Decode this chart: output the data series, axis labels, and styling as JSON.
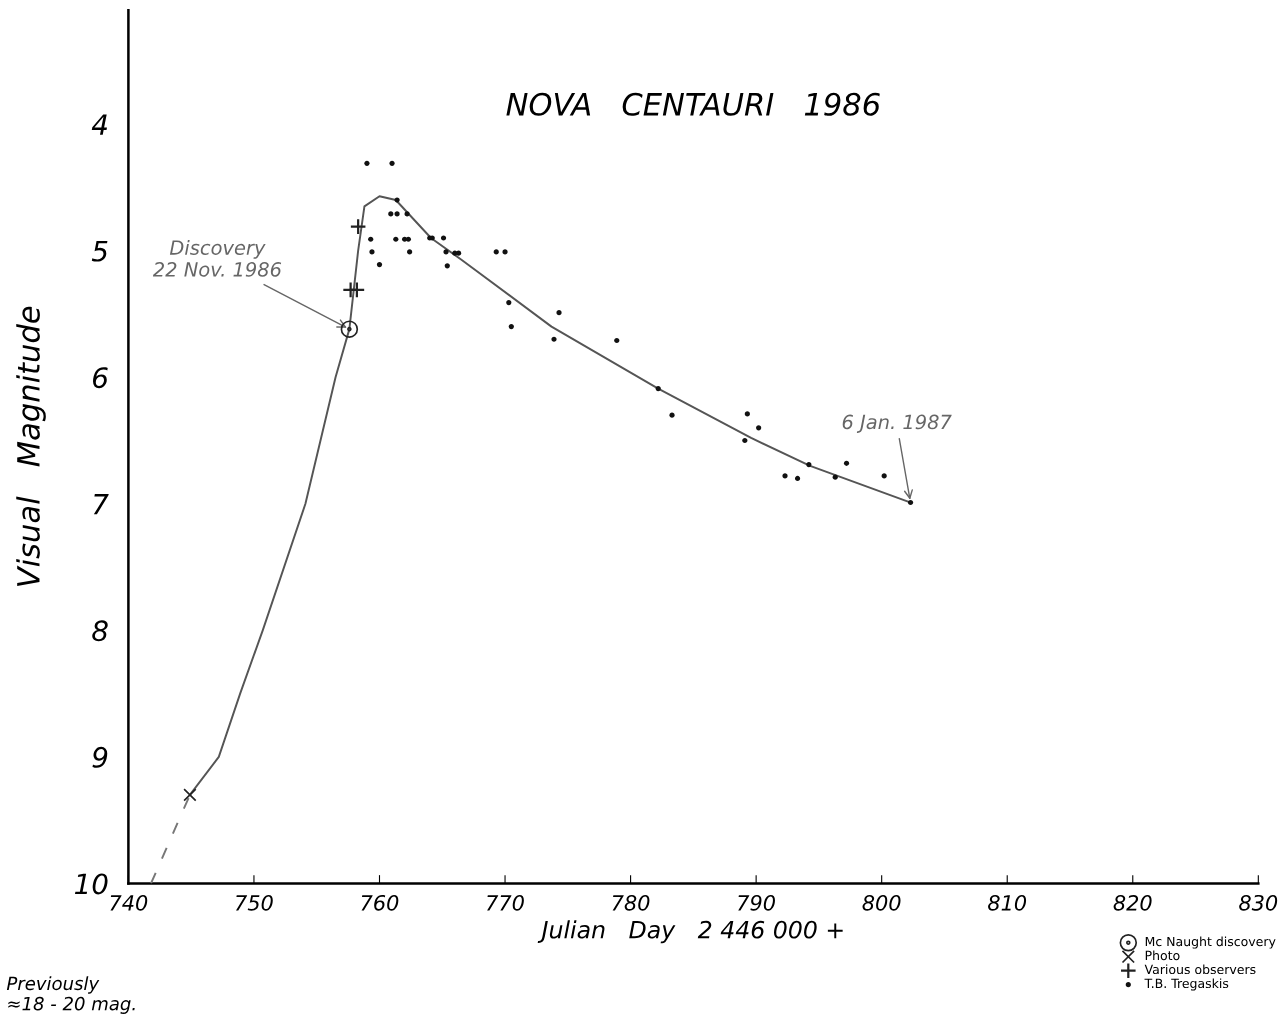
{
  "chart_data": {
    "type": "scatter",
    "title": "NOVA   CENTAURI   1986",
    "xlabel": "Julian   Day   2 446 000 +",
    "ylabel": "Visual   Magnitude",
    "xlim": [
      740,
      830
    ],
    "ylim": [
      10,
      3.1
    ],
    "xticks": [
      740,
      750,
      760,
      770,
      780,
      790,
      800,
      810,
      820,
      830
    ],
    "yticks": [
      4,
      5,
      6,
      7,
      8,
      9,
      10
    ],
    "grid": false,
    "legend": "bottom right",
    "series": [
      {
        "name": "Mc Naught discovery",
        "marker": "circle",
        "color": "#222222",
        "x": [
          757.6
        ],
        "values": [
          5.62
        ]
      },
      {
        "name": "Photo",
        "marker": "cross",
        "color": "#222222",
        "x": [
          744.9
        ],
        "values": [
          9.3
        ]
      },
      {
        "name": "Various observers",
        "marker": "plus",
        "color": "#222222",
        "x": [
          758.3,
          757.7,
          758.2
        ],
        "values": [
          4.81,
          5.31,
          5.31
        ]
      },
      {
        "name": "T.B. Tregaskis",
        "marker": "dot",
        "color": "#111111",
        "x": [
          759.0,
          761.0,
          761.4,
          760.9,
          761.4,
          762.2,
          759.3,
          761.3,
          762.0,
          762.3,
          764.0,
          764.2,
          765.1,
          759.4,
          762.4,
          765.3,
          766.0,
          766.3,
          760.0,
          765.4,
          769.3,
          770.0,
          770.3,
          770.5,
          774.3,
          773.9,
          778.9,
          782.2,
          783.3,
          789.3,
          790.2,
          789.1,
          794.2,
          797.2,
          792.3,
          793.3,
          796.3,
          800.2,
          802.3
        ],
        "values": [
          4.31,
          4.31,
          4.6,
          4.71,
          4.71,
          4.71,
          4.91,
          4.91,
          4.91,
          4.91,
          4.9,
          4.9,
          4.9,
          5.01,
          5.01,
          5.01,
          5.02,
          5.02,
          5.11,
          5.12,
          5.01,
          5.01,
          5.41,
          5.6,
          5.49,
          5.7,
          5.71,
          6.09,
          6.3,
          6.29,
          6.4,
          6.5,
          6.69,
          6.68,
          6.78,
          6.8,
          6.79,
          6.78,
          6.99
        ]
      },
      {
        "type": "line",
        "line_style": "dashed",
        "color": "#777777",
        "x": [
          741.8,
          744.9
        ],
        "values": [
          10,
          9.3
        ]
      },
      {
        "type": "line",
        "line_style": "solid",
        "color": "#555555",
        "x": [
          744.9,
          747.2,
          748.9,
          750.7,
          754.1,
          756.5,
          757.6,
          758.3,
          758.8,
          760.0,
          761.3,
          764.1,
          766.5,
          773.7,
          782.2,
          789.6,
          794.3,
          802.3
        ],
        "values": [
          9.3,
          9.0,
          8.5,
          8.0,
          7.0,
          6.0,
          5.62,
          5.0,
          4.65,
          4.57,
          4.6,
          4.9,
          5.07,
          5.6,
          6.09,
          6.48,
          6.7,
          6.99
        ]
      }
    ],
    "annotations": [
      {
        "text": "Discovery\n22 Nov. 1986",
        "x": 757.6,
        "y": 5.62
      },
      {
        "text": "6 Jan. 1987",
        "x": 802.3,
        "y": 6.99
      },
      "Previously\n≈18 - 20 mag."
    ]
  }
}
